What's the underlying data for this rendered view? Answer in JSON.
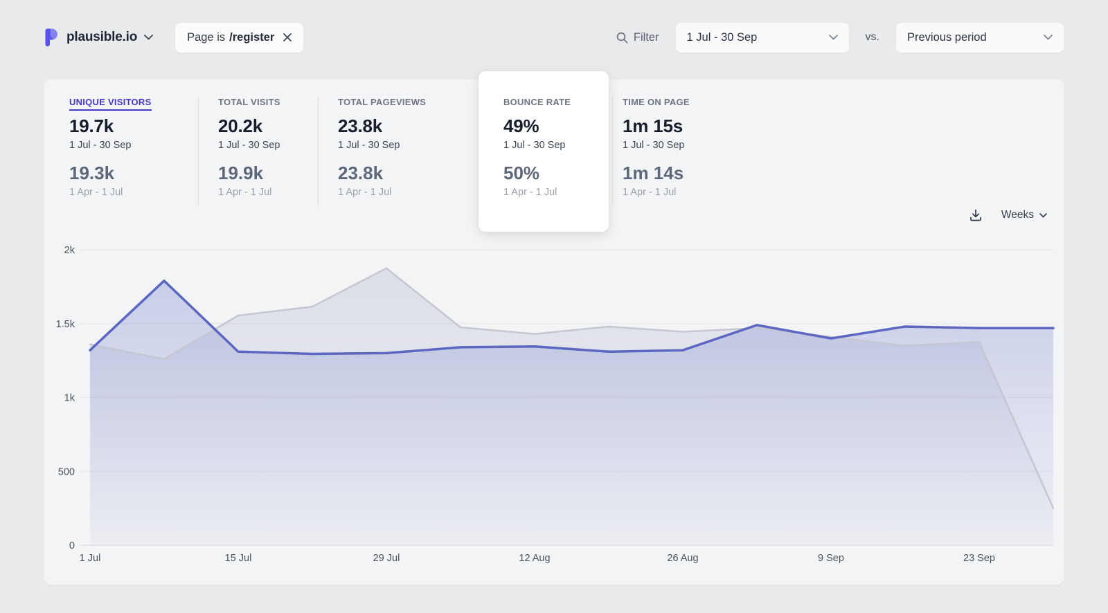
{
  "header": {
    "site_name": "plausible.io",
    "filter_chip": {
      "prefix": "Page is",
      "value": "/register"
    },
    "filter_label": "Filter",
    "date_range": "1 Jul - 30 Sep",
    "vs_label": "vs.",
    "compare": "Previous period"
  },
  "metrics": [
    {
      "label": "UNIQUE VISITORS",
      "value": "19.7k",
      "period": "1 Jul - 30 Sep",
      "prev_value": "19.3k",
      "prev_period": "1 Apr - 1 Jul",
      "active": true
    },
    {
      "label": "TOTAL VISITS",
      "value": "20.2k",
      "period": "1 Jul - 30 Sep",
      "prev_value": "19.9k",
      "prev_period": "1 Apr - 1 Jul"
    },
    {
      "label": "TOTAL PAGEVIEWS",
      "value": "23.8k",
      "period": "1 Jul - 30 Sep",
      "prev_value": "23.8k",
      "prev_period": "1 Apr - 1 Jul"
    },
    {
      "label": "BOUNCE RATE",
      "value": "49%",
      "period": "1 Jul - 30 Sep",
      "prev_value": "50%",
      "prev_period": "1 Apr - 1 Jul",
      "highlighted": true
    },
    {
      "label": "TIME ON PAGE",
      "value": "1m 15s",
      "period": "1 Jul - 30 Sep",
      "prev_value": "1m 14s",
      "prev_period": "1 Apr - 1 Jul"
    }
  ],
  "chart_controls": {
    "interval": "Weeks",
    "download_icon": "download-icon"
  },
  "chart_data": {
    "type": "area",
    "title": "Unique visitors by week, 1 Jul - 30 Sep vs. previous period",
    "x": [
      "1 Jul",
      "8 Jul",
      "15 Jul",
      "22 Jul",
      "29 Jul",
      "5 Aug",
      "12 Aug",
      "19 Aug",
      "26 Aug",
      "2 Sep",
      "9 Sep",
      "16 Sep",
      "23 Sep",
      "30 Sep"
    ],
    "x_tick_every": 2,
    "y_ticks": [
      {
        "value": 0,
        "label": "0"
      },
      {
        "value": 500,
        "label": "500"
      },
      {
        "value": 1000,
        "label": "1k"
      },
      {
        "value": 1500,
        "label": "1.5k"
      },
      {
        "value": 2000,
        "label": "2k"
      }
    ],
    "ylim": [
      0,
      2000
    ],
    "grid": "horizontal",
    "legend": "none",
    "series": [
      {
        "name": "Previous period (1 Apr - 1 Jul)",
        "color": "#c5c6d1",
        "fill": "#a2a7c4",
        "values": [
          1360,
          1260,
          1555,
          1615,
          1875,
          1475,
          1430,
          1480,
          1445,
          1470,
          1410,
          1350,
          1375,
          250
        ]
      },
      {
        "name": "Current period (1 Jul - 30 Sep)",
        "color": "#5b67c1",
        "fill": "#6574cd",
        "values": [
          1320,
          1790,
          1310,
          1295,
          1300,
          1340,
          1345,
          1310,
          1320,
          1490,
          1400,
          1480,
          1470,
          1470
        ]
      }
    ]
  }
}
